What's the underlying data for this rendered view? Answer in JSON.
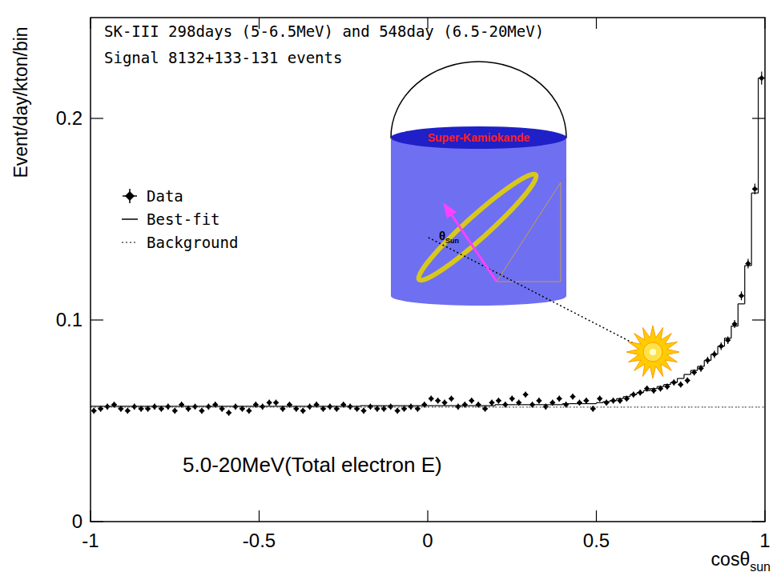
{
  "chart_data": {
    "type": "scatter",
    "subtitle": [
      "SK-III 298days (5-6.5MeV) and 548day (6.5-20MeV)",
      "Signal  8132+133-131 events"
    ],
    "xlabel": {
      "text": "cosθ",
      "sub": "sun"
    },
    "ylabel": "Event/day/kton/bin",
    "annotations": [
      {
        "text": "5.0-20MeV(Total electron E)"
      }
    ],
    "inset": {
      "detector": "Super-Kamiokande",
      "angle": {
        "text": "θ",
        "sub": "Sun"
      }
    },
    "xlim": [
      -1,
      1
    ],
    "ylim": [
      0,
      0.25
    ],
    "xticks": [
      -1,
      -0.5,
      0,
      0.5,
      1
    ],
    "yticks": [
      0,
      0.1,
      0.2
    ],
    "grid": false,
    "legend": "top-left",
    "bins": [
      -1,
      -0.98,
      -0.96,
      -0.94,
      -0.92,
      -0.9,
      -0.88,
      -0.86,
      -0.84,
      -0.82,
      -0.8,
      -0.78,
      -0.76,
      -0.74,
      -0.72,
      -0.7,
      -0.68,
      -0.66,
      -0.64,
      -0.62,
      -0.6,
      -0.58,
      -0.56,
      -0.54,
      -0.52,
      -0.5,
      -0.48,
      -0.46,
      -0.44,
      -0.42,
      -0.4,
      -0.38,
      -0.36,
      -0.34,
      -0.32,
      -0.3,
      -0.28,
      -0.26,
      -0.24,
      -0.22,
      -0.2,
      -0.18,
      -0.16,
      -0.14,
      -0.12,
      -0.1,
      -0.08,
      -0.06,
      -0.04,
      -0.02,
      0,
      0.02,
      0.04,
      0.06,
      0.08,
      0.1,
      0.12,
      0.14,
      0.16,
      0.18,
      0.2,
      0.22,
      0.24,
      0.26,
      0.28,
      0.3,
      0.32,
      0.34,
      0.36,
      0.38,
      0.4,
      0.42,
      0.44,
      0.46,
      0.48,
      0.5,
      0.52,
      0.54,
      0.56,
      0.58,
      0.6,
      0.62,
      0.64,
      0.66,
      0.68,
      0.7,
      0.72,
      0.74,
      0.76,
      0.78,
      0.8,
      0.82,
      0.84,
      0.86,
      0.88,
      0.9,
      0.92,
      0.94,
      0.96,
      0.98,
      1
    ],
    "series": [
      {
        "name": "Data",
        "type": "scatter",
        "marker": "diamond",
        "color": "#000000",
        "values": [
          0.055,
          0.056,
          0.057,
          0.058,
          0.056,
          0.055,
          0.057,
          0.056,
          0.056,
          0.057,
          0.056,
          0.057,
          0.055,
          0.058,
          0.056,
          0.057,
          0.055,
          0.057,
          0.058,
          0.056,
          0.054,
          0.057,
          0.056,
          0.055,
          0.058,
          0.057,
          0.059,
          0.059,
          0.056,
          0.058,
          0.056,
          0.055,
          0.057,
          0.058,
          0.056,
          0.057,
          0.056,
          0.058,
          0.057,
          0.056,
          0.055,
          0.057,
          0.056,
          0.056,
          0.057,
          0.055,
          0.056,
          0.057,
          0.056,
          0.058,
          0.061,
          0.06,
          0.059,
          0.061,
          0.057,
          0.058,
          0.06,
          0.058,
          0.056,
          0.059,
          0.06,
          0.058,
          0.061,
          0.059,
          0.063,
          0.058,
          0.06,
          0.057,
          0.059,
          0.061,
          0.058,
          0.062,
          0.059,
          0.06,
          0.056,
          0.061,
          0.059,
          0.06,
          0.06,
          0.061,
          0.063,
          0.064,
          0.066,
          0.065,
          0.066,
          0.067,
          0.069,
          0.068,
          0.07,
          0.074,
          0.076,
          0.08,
          0.083,
          0.087,
          0.09,
          0.098,
          0.112,
          0.128,
          0.165,
          0.22
        ],
        "errors": [
          0.0015,
          0.0015,
          0.0015,
          0.0015,
          0.0015,
          0.0015,
          0.0015,
          0.0015,
          0.0015,
          0.0015,
          0.0015,
          0.0015,
          0.0015,
          0.0015,
          0.0015,
          0.0015,
          0.0015,
          0.0015,
          0.0015,
          0.0015,
          0.0015,
          0.0015,
          0.0015,
          0.0015,
          0.0015,
          0.0015,
          0.0015,
          0.0015,
          0.0015,
          0.0015,
          0.0015,
          0.0015,
          0.0015,
          0.0015,
          0.0015,
          0.0015,
          0.0015,
          0.0015,
          0.0015,
          0.0015,
          0.0015,
          0.0015,
          0.0015,
          0.0015,
          0.0015,
          0.0015,
          0.0015,
          0.0015,
          0.0015,
          0.0015,
          0.0015,
          0.0015,
          0.0015,
          0.0015,
          0.0015,
          0.0015,
          0.0015,
          0.0015,
          0.0015,
          0.0015,
          0.0015,
          0.0015,
          0.0015,
          0.0015,
          0.0015,
          0.0015,
          0.0015,
          0.0015,
          0.0015,
          0.0015,
          0.0015,
          0.0015,
          0.0015,
          0.0015,
          0.0015,
          0.0015,
          0.0015,
          0.0015,
          0.0015,
          0.0015,
          0.0015,
          0.0015,
          0.0015,
          0.0015,
          0.0015,
          0.0015,
          0.0015,
          0.0015,
          0.0015,
          0.0015,
          0.0017,
          0.0018,
          0.0018,
          0.0019,
          0.0019,
          0.002,
          0.0022,
          0.0024,
          0.0027,
          0.0032
        ]
      },
      {
        "name": "Best-fit",
        "type": "step",
        "line_style": "solid",
        "color": "#000000",
        "values": [
          0.0572,
          0.0572,
          0.0572,
          0.0572,
          0.0572,
          0.0572,
          0.0572,
          0.0572,
          0.0572,
          0.0572,
          0.0572,
          0.0572,
          0.0572,
          0.0572,
          0.0572,
          0.0572,
          0.0572,
          0.0572,
          0.0572,
          0.0572,
          0.0572,
          0.0572,
          0.0572,
          0.0572,
          0.0572,
          0.0572,
          0.0572,
          0.0572,
          0.0572,
          0.0572,
          0.0572,
          0.0572,
          0.0572,
          0.0572,
          0.0572,
          0.0572,
          0.0572,
          0.0572,
          0.0572,
          0.0572,
          0.0575,
          0.0575,
          0.0575,
          0.0575,
          0.0575,
          0.0575,
          0.0575,
          0.0575,
          0.0575,
          0.0575,
          0.0575,
          0.0575,
          0.0575,
          0.0575,
          0.0575,
          0.0575,
          0.0575,
          0.0575,
          0.0575,
          0.0575,
          0.058,
          0.058,
          0.058,
          0.058,
          0.058,
          0.058,
          0.058,
          0.058,
          0.058,
          0.058,
          0.0585,
          0.0585,
          0.0585,
          0.0585,
          0.0585,
          0.059,
          0.0595,
          0.06,
          0.061,
          0.062,
          0.063,
          0.064,
          0.065,
          0.066,
          0.067,
          0.068,
          0.069,
          0.071,
          0.073,
          0.075,
          0.077,
          0.08,
          0.083,
          0.087,
          0.091,
          0.097,
          0.108,
          0.127,
          0.163,
          0.22
        ]
      },
      {
        "name": "Background",
        "type": "step",
        "line_style": "dotted",
        "color": "#555555",
        "values": [
          0.0568,
          0.0568,
          0.0568,
          0.0568,
          0.0568,
          0.0568,
          0.0568,
          0.0568,
          0.0568,
          0.0568,
          0.0568,
          0.0568,
          0.0568,
          0.0568,
          0.0568,
          0.0568,
          0.0568,
          0.0568,
          0.0568,
          0.0568,
          0.0568,
          0.0568,
          0.0568,
          0.0568,
          0.0568,
          0.0568,
          0.0568,
          0.0568,
          0.0568,
          0.0568,
          0.0568,
          0.0568,
          0.0568,
          0.0568,
          0.0568,
          0.0568,
          0.0568,
          0.0568,
          0.0568,
          0.0568,
          0.0568,
          0.0568,
          0.0568,
          0.0568,
          0.0568,
          0.0568,
          0.0568,
          0.0568,
          0.0568,
          0.0568,
          0.0568,
          0.0568,
          0.0568,
          0.0568,
          0.0568,
          0.0568,
          0.0568,
          0.0568,
          0.0568,
          0.0568,
          0.0568,
          0.0568,
          0.0568,
          0.0568,
          0.0568,
          0.0568,
          0.0568,
          0.0568,
          0.0568,
          0.0568,
          0.0568,
          0.0568,
          0.0568,
          0.0568,
          0.0568,
          0.0568,
          0.0568,
          0.0568,
          0.0568,
          0.0568,
          0.0568,
          0.0568,
          0.0568,
          0.0568,
          0.0568,
          0.0568,
          0.0568,
          0.0568,
          0.0568,
          0.0568,
          0.0568,
          0.0568,
          0.0568,
          0.0568,
          0.0568,
          0.0568,
          0.0568,
          0.0568,
          0.0568,
          0.0568
        ]
      }
    ]
  }
}
